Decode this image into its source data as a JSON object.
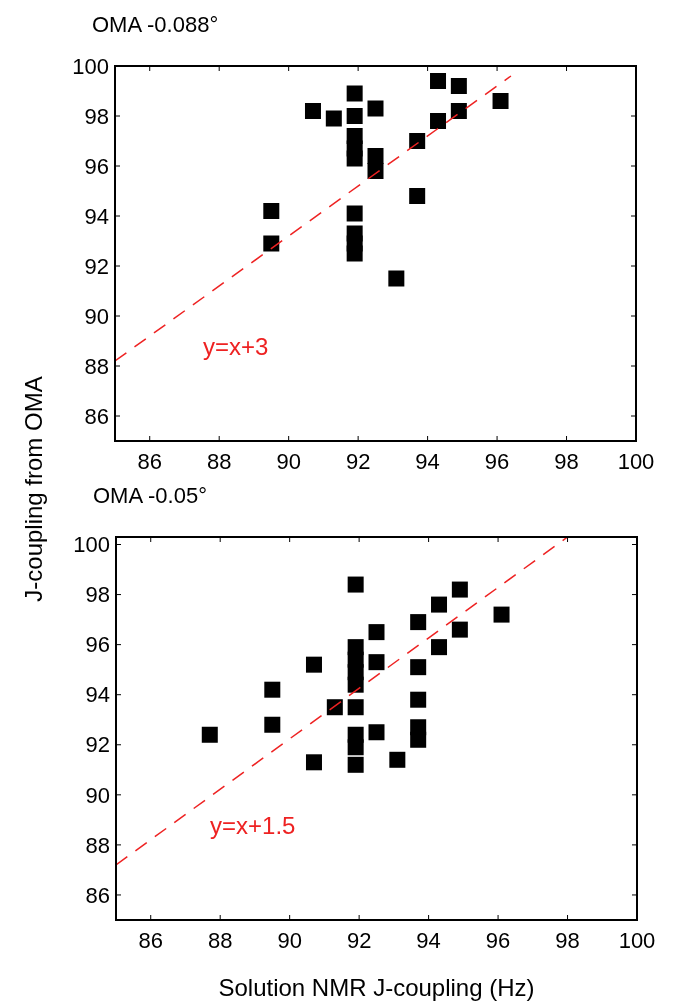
{
  "chart_data": [
    {
      "type": "scatter",
      "title": "OMA -0.088°",
      "ylabel": "J-coupling from OMA",
      "xlim": [
        85,
        100
      ],
      "ylim": [
        85,
        100
      ],
      "xticks": [
        86,
        88,
        90,
        92,
        94,
        96,
        98,
        100
      ],
      "yticks": [
        86,
        88,
        90,
        92,
        94,
        96,
        98,
        100
      ],
      "marker": "square",
      "grid": false,
      "annotations": [
        "y=x+3"
      ],
      "series": [
        {
          "color": "#000000",
          "x": [
            89.5,
            89.5,
            90.7,
            91.3,
            91.9,
            91.9,
            91.9,
            91.9,
            91.9,
            92.5,
            92.5,
            92.5,
            91.9,
            91.9,
            91.9,
            91.9,
            93.1,
            93.7,
            93.7,
            94.3,
            94.3,
            94.9,
            94.9,
            96.1
          ],
          "values": [
            94.2,
            92.9,
            98.2,
            97.9,
            98.9,
            98.0,
            97.2,
            96.7,
            96.3,
            98.3,
            96.4,
            95.8,
            94.1,
            93.3,
            92.9,
            92.5,
            91.5,
            97.0,
            94.8,
            99.4,
            97.8,
            99.2,
            98.2,
            98.6
          ]
        },
        {
          "type": "line",
          "color": "#ee2222",
          "line_style": "dashed",
          "marker": "none",
          "x": [
            85,
            96.4
          ],
          "values": [
            88.2,
            99.6
          ]
        }
      ]
    },
    {
      "type": "scatter",
      "title": "OMA -0.05°",
      "xlabel": "Solution NMR J-coupling (Hz)",
      "xlim": [
        85,
        100
      ],
      "ylim": [
        85,
        100.3
      ],
      "xticks": [
        86,
        88,
        90,
        92,
        94,
        96,
        98,
        100
      ],
      "yticks": [
        86,
        88,
        90,
        92,
        94,
        96,
        98,
        100
      ],
      "marker": "square",
      "grid": false,
      "annotations": [
        "y=x+1.5"
      ],
      "series": [
        {
          "color": "#000000",
          "x": [
            87.7,
            89.5,
            89.5,
            90.7,
            90.7,
            91.3,
            91.9,
            91.9,
            91.9,
            91.9,
            91.9,
            91.9,
            91.9,
            91.9,
            91.9,
            92.5,
            92.5,
            92.5,
            93.1,
            93.7,
            93.7,
            93.7,
            93.7,
            93.7,
            94.3,
            94.3,
            94.9,
            94.9,
            96.1
          ],
          "values": [
            92.4,
            94.2,
            92.8,
            95.2,
            91.3,
            93.5,
            98.4,
            95.9,
            95.4,
            94.9,
            94.4,
            93.5,
            92.4,
            91.9,
            91.2,
            96.5,
            95.3,
            92.5,
            91.4,
            96.9,
            95.1,
            93.8,
            92.7,
            92.2,
            97.6,
            95.9,
            98.2,
            96.6,
            97.2
          ]
        },
        {
          "type": "line",
          "color": "#ee2222",
          "line_style": "dashed",
          "marker": "none",
          "x": [
            85,
            98
          ],
          "values": [
            87.2,
            100.3
          ]
        }
      ]
    }
  ]
}
